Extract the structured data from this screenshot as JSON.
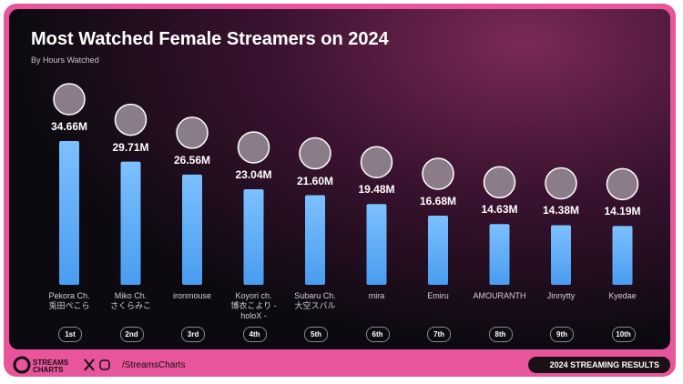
{
  "chart_data": {
    "type": "bar",
    "title": "Most Watched Female Streamers on 2024",
    "subtitle": "By Hours Watched",
    "categories": [
      "Pekora Ch.\n兎田ぺこら",
      "Miko Ch.\nさくらみこ",
      "ironmouse",
      "Koyori ch.\n博衣こより -\nholoX -",
      "Subaru Ch.\n大空スバル",
      "mira",
      "Emiru",
      "AMOURANTH",
      "Jinnytty",
      "Kyedae"
    ],
    "values": [
      34.66,
      29.71,
      26.56,
      23.04,
      21.6,
      19.48,
      16.68,
      14.63,
      14.38,
      14.19
    ],
    "value_labels": [
      "34.66M",
      "29.71M",
      "26.56M",
      "23.04M",
      "21.60M",
      "19.48M",
      "16.68M",
      "14.63M",
      "14.38M",
      "14.19M"
    ],
    "ranks": [
      "1st",
      "2nd",
      "3rd",
      "4th",
      "5th",
      "6th",
      "7th",
      "8th",
      "9th",
      "10th"
    ],
    "color": "#5aaaf5"
  },
  "footer": {
    "brand": "STREAMS CHARTS",
    "handle": "/StreamsCharts",
    "badge": "2024 STREAMING RESULTS"
  }
}
